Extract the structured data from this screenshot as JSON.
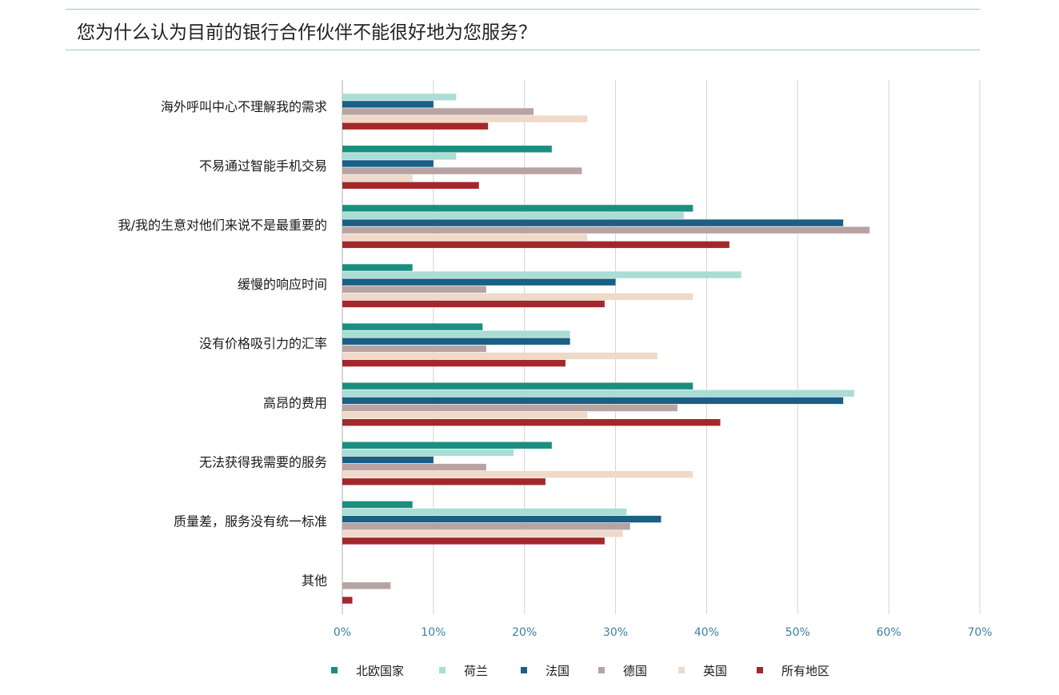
{
  "title": "您为什么认为目前的银行合作伙伴不能很好地为您服务？",
  "chart_data": {
    "type": "bar",
    "orientation": "horizontal",
    "categories": [
      "海外呼叫中心不理解我的需求",
      "不易通过智能手机交易",
      "我/我的生意对他们来说不是最重要的",
      "缓慢的响应时间",
      "没有价格吸引力的汇率",
      "高昂的费用",
      "无法获得我需要的服务",
      "质量差，服务没有统一标准",
      "其他"
    ],
    "series": [
      {
        "name": "北欧国家",
        "color": "#1a8f80",
        "values": [
          0,
          23,
          38.5,
          7.7,
          15.4,
          38.5,
          23,
          7.7,
          0
        ]
      },
      {
        "name": "荷兰",
        "color": "#a9ddd5",
        "values": [
          12.5,
          12.5,
          37.5,
          43.8,
          25,
          56.2,
          18.8,
          31.2,
          0
        ]
      },
      {
        "name": "法国",
        "color": "#1a5f85",
        "values": [
          10,
          10,
          55,
          30,
          25,
          55,
          10,
          35,
          0
        ]
      },
      {
        "name": "德国",
        "color": "#b8a3a3",
        "values": [
          21,
          26.3,
          57.9,
          15.8,
          15.8,
          36.8,
          15.8,
          31.6,
          5.3
        ]
      },
      {
        "name": "英国",
        "color": "#efd9c9",
        "values": [
          26.9,
          7.7,
          26.9,
          38.5,
          34.6,
          26.9,
          38.5,
          30.8,
          0
        ]
      },
      {
        "name": "所有地区",
        "color": "#a3282c",
        "values": [
          16,
          15,
          42.5,
          28.8,
          24.5,
          41.5,
          22.3,
          28.8,
          1.1
        ]
      }
    ],
    "x_ticks": [
      "0%",
      "10%",
      "20%",
      "30%",
      "40%",
      "50%",
      "60%",
      "70%"
    ],
    "xlim": [
      0,
      70
    ],
    "grid": true,
    "legend_position": "bottom"
  }
}
